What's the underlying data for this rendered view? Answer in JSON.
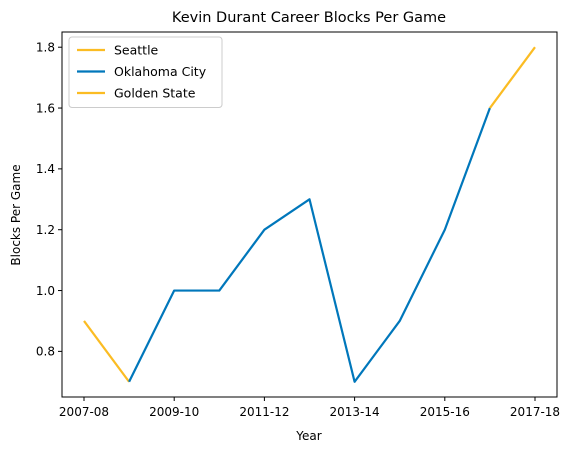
{
  "chart_data": {
    "type": "line",
    "title": "Kevin Durant Career Blocks Per Game",
    "xlabel": "Year",
    "ylabel": "Blocks Per Game",
    "x_tick_labels": [
      "2007-08",
      "2009-10",
      "2011-12",
      "2013-14",
      "2015-16",
      "2017-18"
    ],
    "y_tick_labels": [
      "0.8",
      "1.0",
      "1.2",
      "1.4",
      "1.6",
      "1.8"
    ],
    "ylim": [
      0.65,
      1.85
    ],
    "legend_position": "upper-left",
    "grid": false,
    "series": [
      {
        "name": "Seattle",
        "color": "#fbbc23",
        "points": [
          {
            "x": "2007-08",
            "y": 0.9
          },
          {
            "x": "2008-09",
            "y": 0.7
          }
        ]
      },
      {
        "name": "Oklahoma City",
        "color": "#0077bb",
        "points": [
          {
            "x": "2008-09",
            "y": 0.7
          },
          {
            "x": "2009-10",
            "y": 1.0
          },
          {
            "x": "2010-11",
            "y": 1.0
          },
          {
            "x": "2011-12",
            "y": 1.2
          },
          {
            "x": "2012-13",
            "y": 1.3
          },
          {
            "x": "2013-14",
            "y": 0.7
          },
          {
            "x": "2014-15",
            "y": 0.9
          },
          {
            "x": "2015-16",
            "y": 1.2
          },
          {
            "x": "2016-17",
            "y": 1.6
          }
        ]
      },
      {
        "name": "Golden State",
        "color": "#fbbc23",
        "points": [
          {
            "x": "2016-17",
            "y": 1.6
          },
          {
            "x": "2017-18",
            "y": 1.8
          }
        ]
      }
    ]
  }
}
